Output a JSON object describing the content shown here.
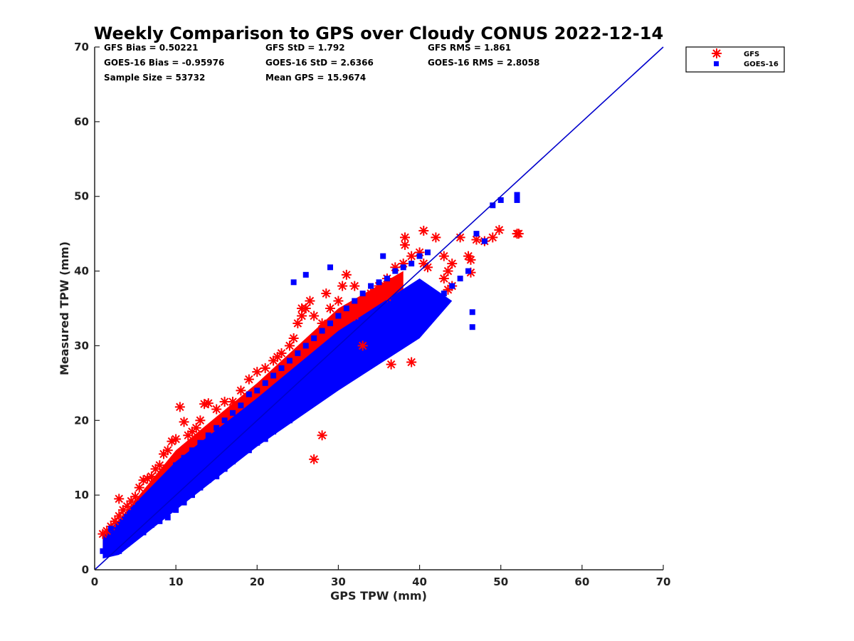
{
  "chart_data": {
    "type": "scatter",
    "title": "Weekly Comparison to GPS over Cloudy CONUS 2022-12-14",
    "xlabel": "GPS TPW (mm)",
    "ylabel": "Measured TPW (mm)",
    "xlim": [
      0,
      70
    ],
    "ylim": [
      0,
      70
    ],
    "xticks": [
      "0",
      "10",
      "20",
      "30",
      "40",
      "50",
      "60",
      "70"
    ],
    "yticks": [
      "0",
      "10",
      "20",
      "30",
      "40",
      "50",
      "60",
      "70"
    ],
    "grid": false,
    "legend_position": "outside-top-right",
    "reference_line": {
      "x": [
        0,
        70
      ],
      "y": [
        0,
        70
      ],
      "color": "#0000cc"
    },
    "stats": {
      "gfs_bias": "GFS Bias = 0.50221",
      "gfs_std": "GFS StD = 1.792",
      "gfs_rms": "GFS RMS = 1.861",
      "goes_bias": "GOES-16 Bias = -0.95976",
      "goes_std": "GOES-16 StD = 2.6366",
      "goes_rms": "GOES-16 RMS = 2.8058",
      "sample_size": "Sample Size = 53732",
      "mean_gps": "Mean GPS = 15.9674"
    },
    "series": [
      {
        "name": "GFS",
        "marker": "asterisk",
        "color": "#ff0000",
        "points": [
          [
            1,
            4.8
          ],
          [
            1.5,
            5.2
          ],
          [
            2,
            5.8
          ],
          [
            2.5,
            6.5
          ],
          [
            3,
            7.2
          ],
          [
            3,
            9.5
          ],
          [
            3.5,
            8
          ],
          [
            4,
            8.5
          ],
          [
            4.5,
            9.2
          ],
          [
            5,
            9.8
          ],
          [
            5.5,
            11
          ],
          [
            6,
            12
          ],
          [
            6.5,
            12.2
          ],
          [
            7,
            12.5
          ],
          [
            7.5,
            13.5
          ],
          [
            8,
            14
          ],
          [
            8.5,
            15.5
          ],
          [
            9,
            16
          ],
          [
            9.5,
            17.2
          ],
          [
            10,
            17.5
          ],
          [
            10.5,
            21.8
          ],
          [
            11,
            19.8
          ],
          [
            11.5,
            18
          ],
          [
            12,
            18.5
          ],
          [
            12.5,
            19
          ],
          [
            13,
            20
          ],
          [
            13.5,
            22.2
          ],
          [
            14,
            22.3
          ],
          [
            15,
            21.5
          ],
          [
            16,
            22.5
          ],
          [
            17,
            22.5
          ],
          [
            18,
            24
          ],
          [
            19,
            25.5
          ],
          [
            20,
            26.5
          ],
          [
            21,
            27
          ],
          [
            22,
            28
          ],
          [
            22.5,
            28.5
          ],
          [
            23,
            29
          ],
          [
            24,
            30
          ],
          [
            24.5,
            31
          ],
          [
            25,
            33
          ],
          [
            25.5,
            35
          ],
          [
            25.5,
            34
          ],
          [
            26,
            35
          ],
          [
            26.5,
            36
          ],
          [
            27,
            34
          ],
          [
            27,
            14.8
          ],
          [
            28,
            18
          ],
          [
            28,
            33
          ],
          [
            28.5,
            37
          ],
          [
            29,
            35
          ],
          [
            30,
            36
          ],
          [
            30.5,
            38
          ],
          [
            31,
            39.5
          ],
          [
            32,
            38
          ],
          [
            32,
            34
          ],
          [
            33,
            36
          ],
          [
            33,
            30
          ],
          [
            34,
            37
          ],
          [
            35,
            38
          ],
          [
            36,
            39
          ],
          [
            36,
            36.5
          ],
          [
            36.5,
            27.5
          ],
          [
            37,
            40.5
          ],
          [
            38,
            41
          ],
          [
            38.2,
            43.5
          ],
          [
            38.2,
            44.5
          ],
          [
            39,
            42
          ],
          [
            39,
            27.8
          ],
          [
            40,
            42.5
          ],
          [
            40.5,
            41
          ],
          [
            40.5,
            45.4
          ],
          [
            41,
            40.5
          ],
          [
            42,
            44.5
          ],
          [
            43,
            42
          ],
          [
            43,
            39
          ],
          [
            43.5,
            37.5
          ],
          [
            43.5,
            40
          ],
          [
            44,
            38
          ],
          [
            44,
            41
          ],
          [
            45,
            44.5
          ],
          [
            46,
            42
          ],
          [
            46.3,
            39.8
          ],
          [
            46.3,
            41.5
          ],
          [
            47,
            44.2
          ],
          [
            48,
            44
          ],
          [
            49,
            44.5
          ],
          [
            49.8,
            45.5
          ],
          [
            52,
            45
          ],
          [
            52.2,
            45
          ]
        ]
      },
      {
        "name": "GOES-16",
        "marker": "square",
        "color": "#0000ff",
        "points": [
          [
            1,
            2.5
          ],
          [
            1.5,
            3
          ],
          [
            2,
            3.5
          ],
          [
            2,
            5.5
          ],
          [
            3,
            2.5
          ],
          [
            3,
            4
          ],
          [
            3.5,
            6
          ],
          [
            4,
            3.5
          ],
          [
            4,
            7
          ],
          [
            5,
            4.5
          ],
          [
            5,
            8
          ],
          [
            6,
            5
          ],
          [
            6,
            9
          ],
          [
            7,
            6
          ],
          [
            7,
            10
          ],
          [
            8,
            6.5
          ],
          [
            8,
            11
          ],
          [
            9,
            7
          ],
          [
            9,
            12
          ],
          [
            10,
            8
          ],
          [
            10,
            14
          ],
          [
            11,
            9
          ],
          [
            11,
            15
          ],
          [
            12,
            10
          ],
          [
            12,
            16
          ],
          [
            13,
            11
          ],
          [
            13,
            17
          ],
          [
            14,
            12
          ],
          [
            14,
            18
          ],
          [
            15,
            12.5
          ],
          [
            15,
            19
          ],
          [
            16,
            13.5
          ],
          [
            16,
            20
          ],
          [
            17,
            14.5
          ],
          [
            17,
            21
          ],
          [
            18,
            15.5
          ],
          [
            18,
            22
          ],
          [
            19,
            16
          ],
          [
            19,
            23.5
          ],
          [
            20,
            17
          ],
          [
            20,
            24
          ],
          [
            21,
            17.5
          ],
          [
            21,
            25
          ],
          [
            22,
            18.5
          ],
          [
            22,
            26
          ],
          [
            23,
            19.5
          ],
          [
            23,
            27
          ],
          [
            24,
            20
          ],
          [
            24,
            28
          ],
          [
            25,
            21
          ],
          [
            25,
            29
          ],
          [
            26,
            22
          ],
          [
            26,
            30
          ],
          [
            27,
            22.5
          ],
          [
            27,
            31
          ],
          [
            28,
            23.5
          ],
          [
            28,
            32
          ],
          [
            29,
            24
          ],
          [
            29,
            33
          ],
          [
            30,
            25
          ],
          [
            30,
            34
          ],
          [
            31,
            26
          ],
          [
            31,
            35
          ],
          [
            32,
            27
          ],
          [
            32,
            36
          ],
          [
            33,
            27.5
          ],
          [
            33,
            37
          ],
          [
            34,
            28
          ],
          [
            34,
            38
          ],
          [
            35,
            29
          ],
          [
            35,
            38.5
          ],
          [
            36,
            30
          ],
          [
            36,
            39
          ],
          [
            37,
            31
          ],
          [
            37,
            40
          ],
          [
            38,
            32
          ],
          [
            38,
            40.5
          ],
          [
            39,
            33
          ],
          [
            39,
            41
          ],
          [
            40,
            34
          ],
          [
            40,
            42
          ],
          [
            41,
            35
          ],
          [
            41,
            42.5
          ],
          [
            42,
            36
          ],
          [
            43,
            37
          ],
          [
            44,
            38
          ],
          [
            45,
            39
          ],
          [
            46,
            40
          ],
          [
            46.5,
            34.5
          ],
          [
            46.5,
            32.5
          ],
          [
            47,
            45
          ],
          [
            48,
            44
          ],
          [
            49,
            48.8
          ],
          [
            50,
            49.5
          ],
          [
            52,
            49.5
          ],
          [
            52,
            50.2
          ],
          [
            24.5,
            38.5
          ],
          [
            26,
            39.5
          ],
          [
            29,
            40.5
          ],
          [
            35.5,
            42
          ]
        ]
      }
    ]
  }
}
